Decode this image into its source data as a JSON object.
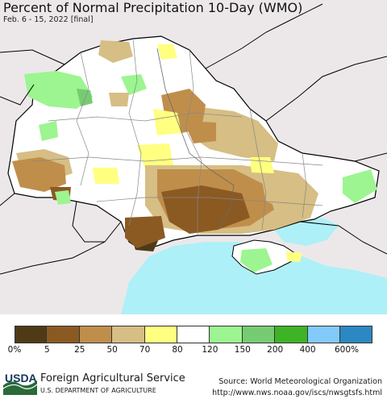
{
  "header": {
    "title": "Percent of Normal Precipitation 10-Day (WMO)",
    "subtitle": "Feb. 6 - 15, 2022 [final]"
  },
  "legend": {
    "colors": [
      "#4f3a17",
      "#8b5a22",
      "#c08e4b",
      "#d6be84",
      "#ffff80",
      "#ffffff",
      "#9cf590",
      "#76cc72",
      "#3fb326",
      "#82cafa",
      "#2c88c2"
    ],
    "labels": [
      "0%",
      "5",
      "25",
      "50",
      "70",
      "80",
      "120",
      "150",
      "200",
      "400",
      "600%"
    ]
  },
  "map_colors": {
    "sea": "#aef0f7",
    "outside": "#ece8ea",
    "land": "#ffffff",
    "border": "#000000",
    "admin_line": "#888888"
  },
  "footer": {
    "logo_text": "USDA",
    "agency": "Foreign Agricultural Service",
    "department": "U.S. DEPARTMENT OF AGRICULTURE",
    "source": "Source: World Meteorological Organization",
    "url": "http://www.nws.noaa.gov/iscs/nwsgtsfs.html"
  }
}
